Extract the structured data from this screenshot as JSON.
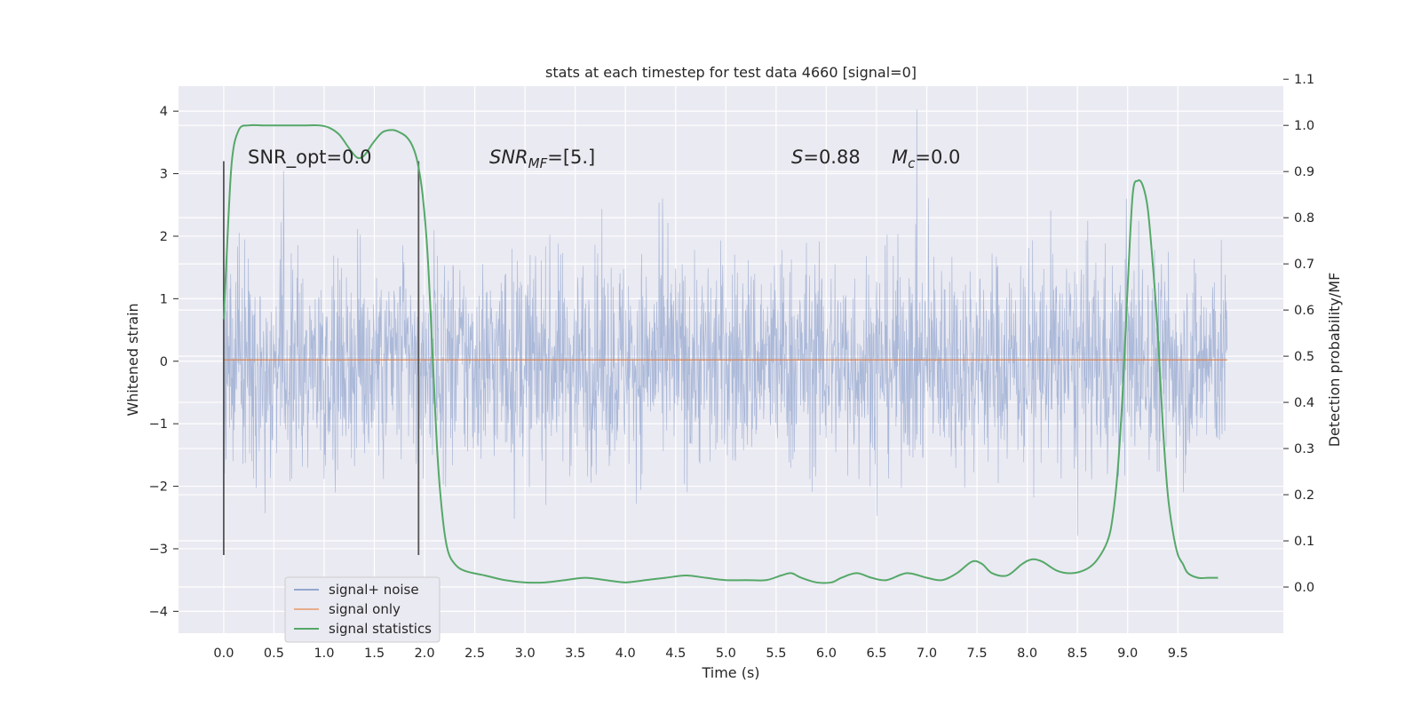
{
  "chart_data": {
    "type": "line",
    "title": "stats at each timestep for test data 4660 [signal=0]",
    "xlabel": "Time (s)",
    "ylabel_left": "Whitened strain",
    "ylabel_right": "Detection probability/MF",
    "xlim": [
      -0.45,
      10.55
    ],
    "ylim_left": [
      -4.35,
      4.4
    ],
    "ylim_right": [
      -0.1,
      1.085
    ],
    "grid": true,
    "x_ticks": [
      "0.0",
      "0.5",
      "1.0",
      "1.5",
      "2.0",
      "2.5",
      "3.0",
      "3.5",
      "4.0",
      "4.5",
      "5.0",
      "5.5",
      "6.0",
      "6.5",
      "7.0",
      "7.5",
      "8.0",
      "8.5",
      "9.0",
      "9.5"
    ],
    "y_ticks_left": [
      "−4",
      "−3",
      "−2",
      "−1",
      "0",
      "1",
      "2",
      "3",
      "4"
    ],
    "y_ticks_right": [
      "0.0",
      "0.1",
      "0.2",
      "0.3",
      "0.4",
      "0.5",
      "0.6",
      "0.7",
      "0.8",
      "0.9",
      "1.0",
      "1.1"
    ],
    "annotations": {
      "snr_opt": "SNR_opt=0.0",
      "snr_mf_main": "SNR",
      "snr_mf_sub": "MF",
      "snr_mf_value": "=[5.]",
      "s_main": "S",
      "s_value": "=0.88",
      "mc_main": "M",
      "mc_sub": "c",
      "mc_value": "=0.0"
    },
    "markers": [
      {
        "x": 0.0,
        "ymin": -3.1,
        "ymax": 3.2
      },
      {
        "x": 1.94,
        "ymin": -3.1,
        "ymax": 3.2
      }
    ],
    "legend_position": "lower-left",
    "series": [
      {
        "name": "signal+ noise",
        "axis": "left",
        "color": "#94a7cf",
        "style": "dense noise, time step ~0.01 s, range approx -3.9 to 4.05",
        "x_range": [
          0.0,
          9.99
        ]
      },
      {
        "name": "signal only",
        "axis": "left",
        "color": "#dd8452",
        "x": [
          0.0,
          9.99
        ],
        "y": [
          0.02,
          0.02
        ]
      },
      {
        "name": "signal statistics",
        "axis": "right",
        "color": "#55a868",
        "x": [
          0.0,
          0.03,
          0.08,
          0.15,
          0.25,
          0.4,
          0.6,
          0.8,
          0.95,
          1.05,
          1.15,
          1.25,
          1.33,
          1.4,
          1.48,
          1.58,
          1.68,
          1.75,
          1.82,
          1.88,
          1.93,
          1.98,
          2.03,
          2.08,
          2.13,
          2.18,
          2.23,
          2.3,
          2.4,
          2.6,
          2.8,
          3.0,
          3.2,
          3.4,
          3.6,
          3.8,
          4.0,
          4.2,
          4.4,
          4.6,
          4.8,
          5.0,
          5.2,
          5.4,
          5.55,
          5.65,
          5.75,
          5.9,
          6.05,
          6.15,
          6.3,
          6.45,
          6.6,
          6.8,
          7.0,
          7.15,
          7.3,
          7.45,
          7.55,
          7.65,
          7.8,
          7.95,
          8.05,
          8.15,
          8.3,
          8.45,
          8.6,
          8.7,
          8.8,
          8.85,
          8.9,
          8.95,
          9.0,
          9.05,
          9.1,
          9.15,
          9.2,
          9.25,
          9.3,
          9.35,
          9.4,
          9.45,
          9.5,
          9.55,
          9.6,
          9.7,
          9.8,
          9.9
        ],
        "y": [
          0.58,
          0.72,
          0.92,
          0.99,
          1.0,
          1.0,
          1.0,
          1.0,
          1.0,
          0.995,
          0.98,
          0.95,
          0.93,
          0.935,
          0.96,
          0.985,
          0.99,
          0.985,
          0.975,
          0.955,
          0.92,
          0.85,
          0.72,
          0.5,
          0.28,
          0.15,
          0.08,
          0.05,
          0.035,
          0.025,
          0.015,
          0.01,
          0.01,
          0.015,
          0.02,
          0.015,
          0.01,
          0.015,
          0.02,
          0.025,
          0.02,
          0.015,
          0.015,
          0.015,
          0.025,
          0.03,
          0.02,
          0.01,
          0.01,
          0.02,
          0.03,
          0.02,
          0.015,
          0.03,
          0.02,
          0.015,
          0.03,
          0.055,
          0.05,
          0.03,
          0.025,
          0.05,
          0.06,
          0.055,
          0.035,
          0.03,
          0.04,
          0.06,
          0.1,
          0.15,
          0.25,
          0.42,
          0.65,
          0.85,
          0.88,
          0.87,
          0.82,
          0.7,
          0.55,
          0.35,
          0.2,
          0.12,
          0.07,
          0.05,
          0.03,
          0.02,
          0.02,
          0.02
        ]
      }
    ]
  }
}
